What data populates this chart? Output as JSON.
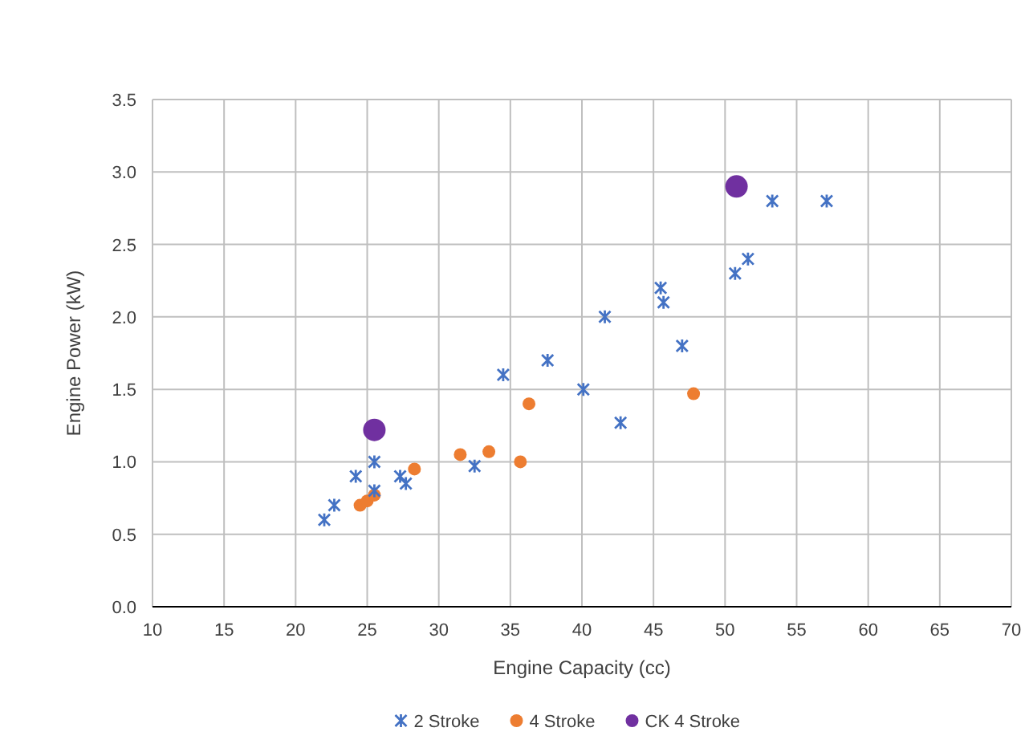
{
  "chart_data": {
    "type": "scatter",
    "xlabel": "Engine Capacity (cc)",
    "ylabel": "Engine Power (kW)",
    "xlim": [
      10,
      70
    ],
    "xticks": [
      10,
      15,
      20,
      25,
      30,
      35,
      40,
      45,
      50,
      55,
      60,
      65,
      70
    ],
    "ylim": [
      0,
      3.5
    ],
    "yticks": [
      {
        "value": 0,
        "label": "0.0"
      },
      {
        "value": 0.5,
        "label": "0.5"
      },
      {
        "value": 1,
        "label": "1.0"
      },
      {
        "value": 1.5,
        "label": "1.5"
      },
      {
        "value": 2,
        "label": "2.0"
      },
      {
        "value": 2.5,
        "label": "2.5"
      },
      {
        "value": 3,
        "label": "3.0"
      },
      {
        "value": 3.5,
        "label": "3.5"
      }
    ],
    "grid": true,
    "legend": "bottom",
    "series": [
      {
        "name": "2 Stroke",
        "color": "#4472c4",
        "marker": "cross",
        "x": [
          22,
          22.7,
          24.2,
          25.5,
          25.5,
          27.3,
          27.7,
          32.5,
          34.5,
          37.6,
          40.1,
          41.6,
          42.7,
          45.5,
          45.7,
          47,
          50.7,
          51.6,
          53.3,
          57.1
        ],
        "values": [
          0.6,
          0.7,
          0.9,
          1.0,
          0.8,
          0.9,
          0.85,
          0.97,
          1.6,
          1.7,
          1.5,
          2.0,
          1.27,
          2.2,
          2.1,
          1.8,
          2.3,
          2.4,
          2.8,
          2.8
        ]
      },
      {
        "name": "4 Stroke",
        "color": "#ed7d31",
        "marker": "circle",
        "x": [
          24.5,
          25,
          25.5,
          28.3,
          31.5,
          33.5,
          35.7,
          36.3,
          47.8
        ],
        "values": [
          0.7,
          0.73,
          0.77,
          0.95,
          1.05,
          1.07,
          1.0,
          1.4,
          1.47
        ]
      },
      {
        "name": "CK 4 Stroke",
        "color": "#7030a0",
        "marker": "circle",
        "x": [
          25.5,
          50.8
        ],
        "values": [
          1.22,
          2.9
        ]
      }
    ]
  }
}
